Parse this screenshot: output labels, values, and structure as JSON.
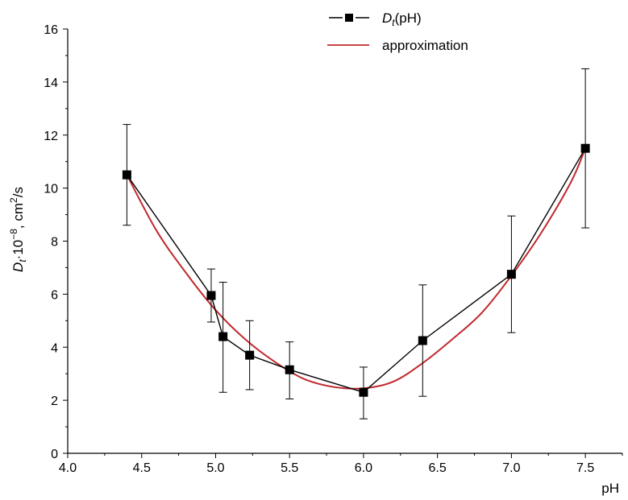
{
  "chart_data": {
    "type": "scatter",
    "xlabel": "pH",
    "ylabel_parts": {
      "d": "D",
      "t": "t",
      "factor": "·10",
      "exp": "−8",
      "unit_pre": ", cm",
      "unit_exp": "2",
      "unit_post": "/s"
    },
    "xlim": [
      4.0,
      7.75
    ],
    "ylim": [
      0,
      16
    ],
    "x_ticks": [
      "4.0",
      "4.5",
      "5.0",
      "5.5",
      "6.0",
      "6.5",
      "7.0",
      "7.5"
    ],
    "y_ticks": [
      "0",
      "2",
      "4",
      "6",
      "8",
      "10",
      "12",
      "14",
      "16"
    ],
    "grid": false,
    "legend_position": "top-center",
    "series": [
      {
        "name": "Dt(pH)",
        "legend_label": {
          "d": "D",
          "t": "t",
          "rest": "(pH)"
        },
        "color": "#000000",
        "marker": "square",
        "x": [
          4.4,
          4.97,
          5.05,
          5.23,
          5.5,
          6.0,
          6.4,
          7.0,
          7.5
        ],
        "y": [
          10.5,
          5.95,
          4.4,
          3.7,
          3.15,
          2.3,
          4.25,
          6.75,
          11.5
        ],
        "err_low": [
          8.6,
          4.95,
          2.3,
          2.4,
          2.05,
          1.3,
          2.15,
          4.55,
          8.5
        ],
        "err_high": [
          12.4,
          6.95,
          6.45,
          5.0,
          4.2,
          3.25,
          6.35,
          8.95,
          14.5
        ]
      },
      {
        "name": "approximation",
        "color": "#c0282d",
        "line": true,
        "x": [
          4.4,
          4.6,
          4.8,
          5.0,
          5.2,
          5.4,
          5.6,
          5.8,
          6.0,
          6.2,
          6.4,
          6.6,
          6.8,
          7.0,
          7.2,
          7.4,
          7.5
        ],
        "y": [
          10.5,
          8.4,
          6.8,
          5.4,
          4.3,
          3.45,
          2.8,
          2.5,
          2.45,
          2.7,
          3.4,
          4.3,
          5.3,
          6.7,
          8.3,
          10.2,
          11.5
        ]
      }
    ]
  }
}
